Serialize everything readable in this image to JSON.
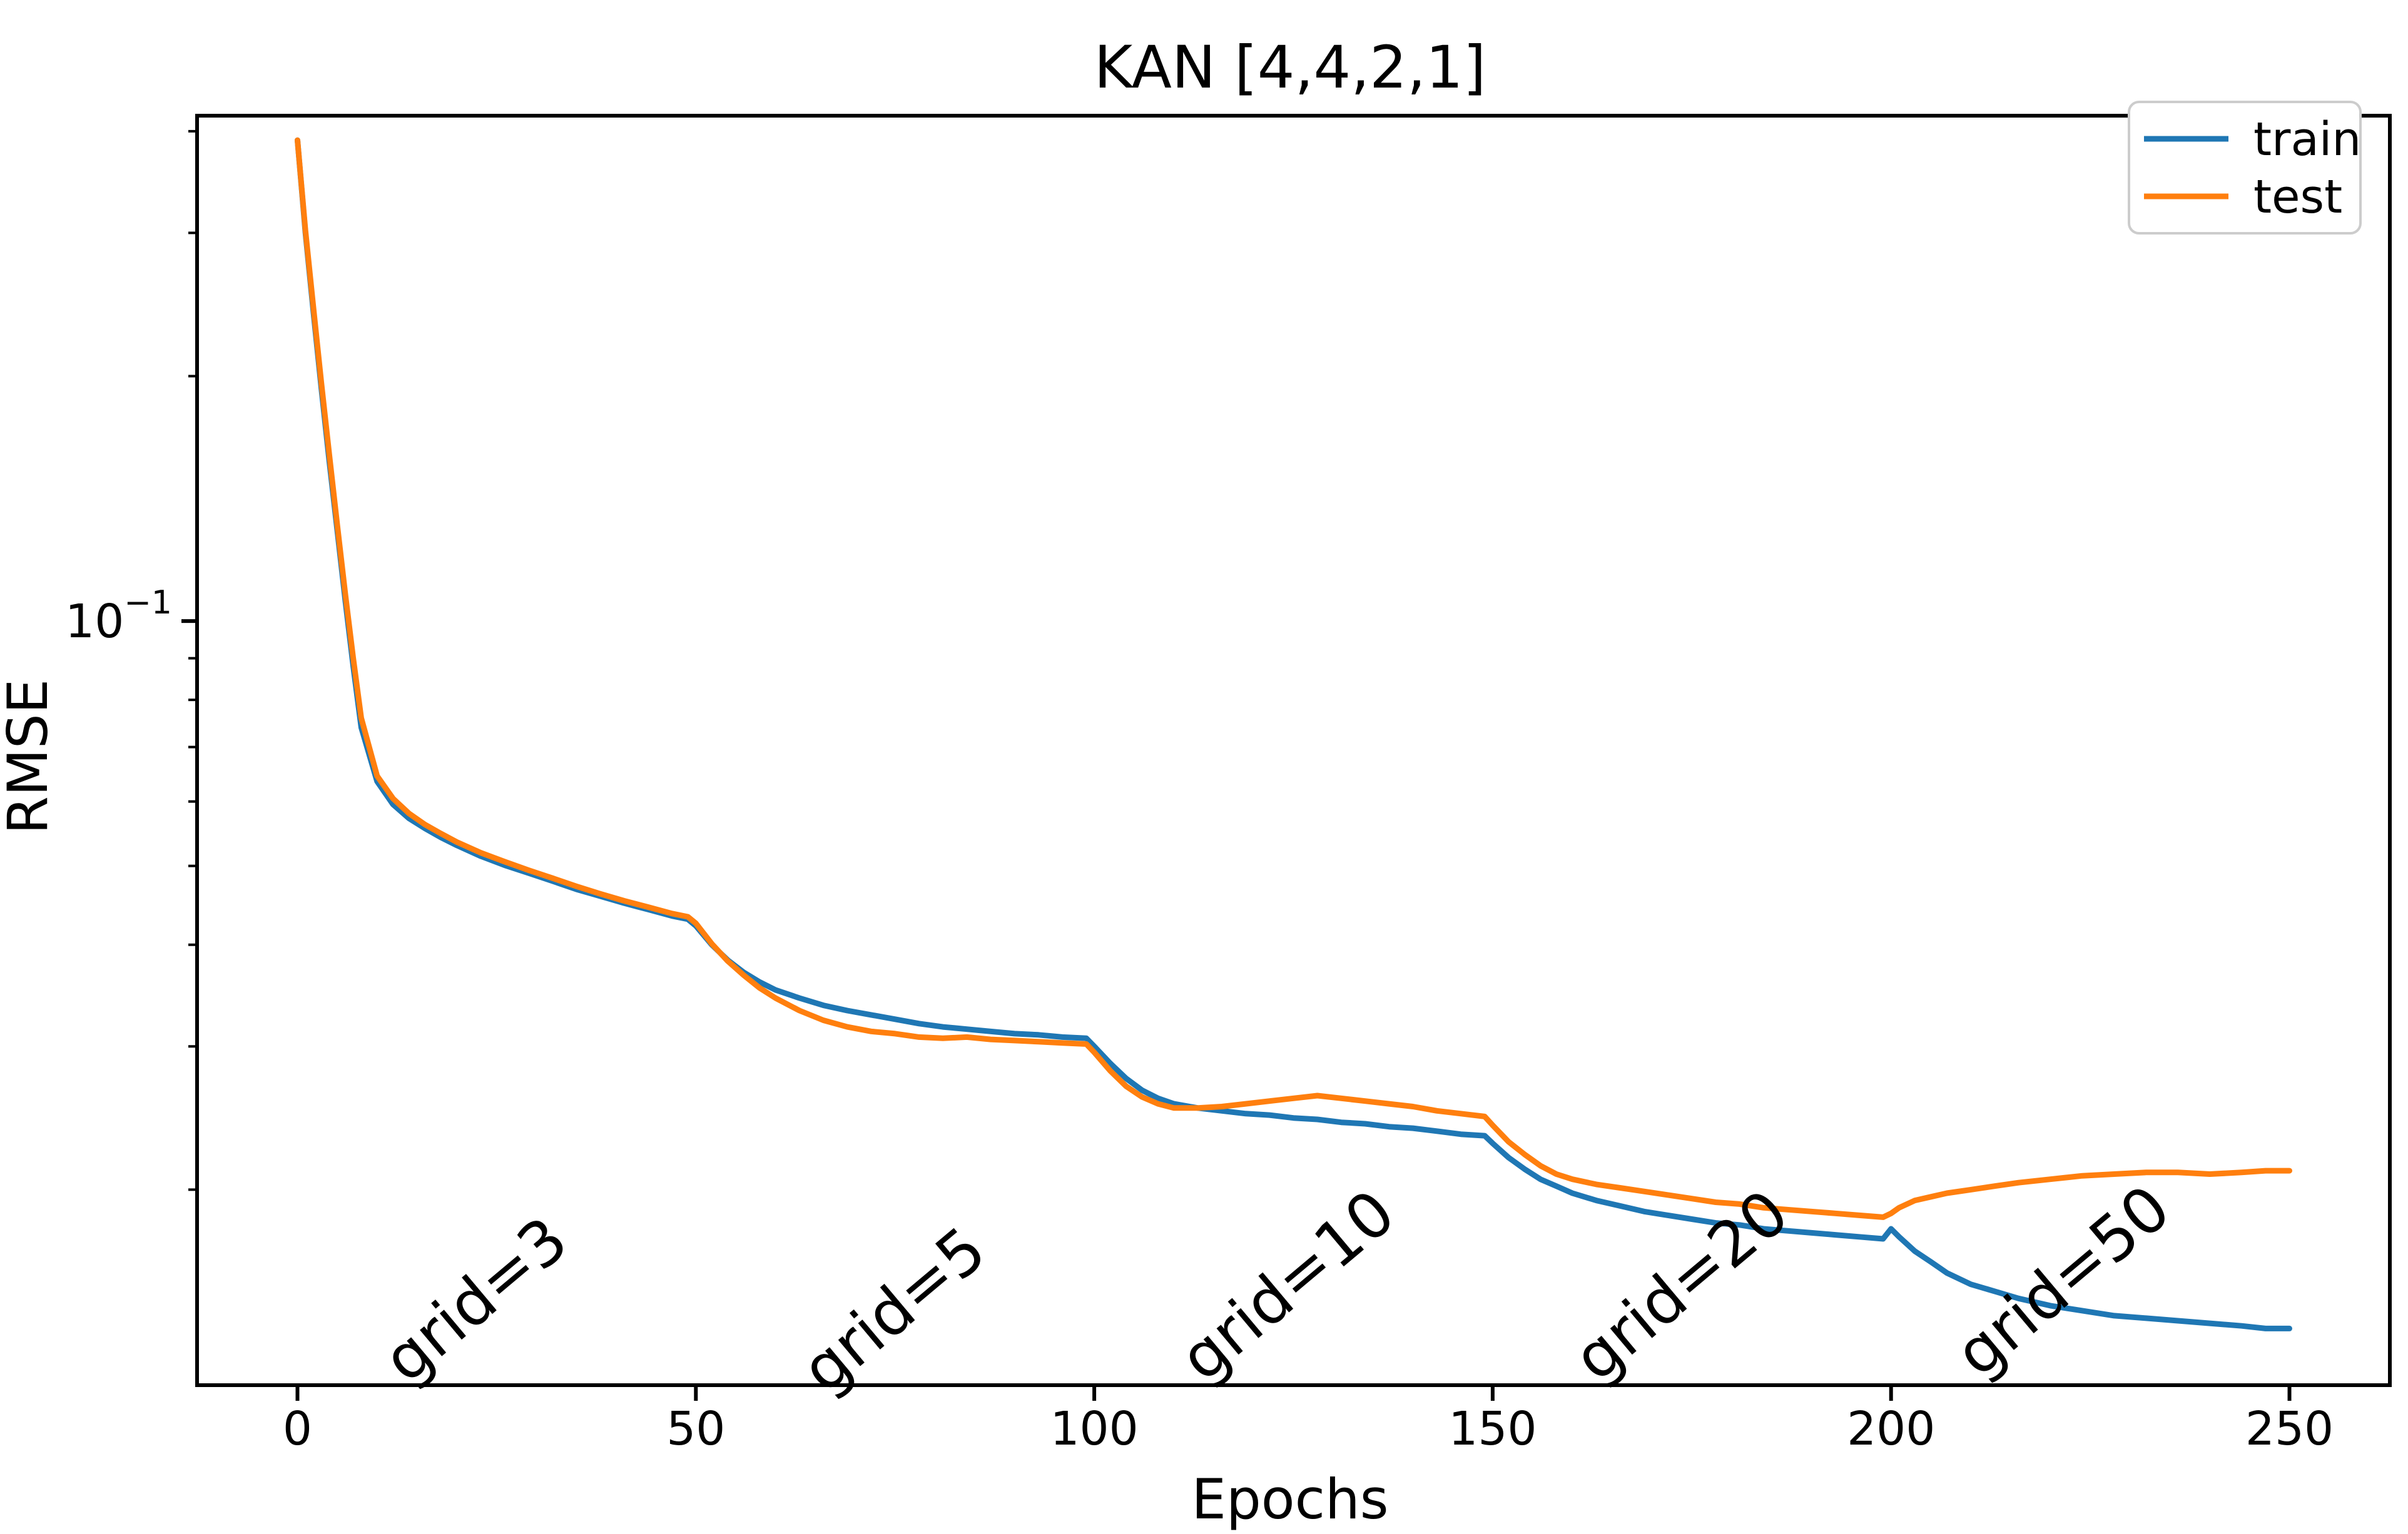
{
  "title": "KAN [4,4,2,1]",
  "axes": {
    "xlabel": "Epochs",
    "ylabel": "RMSE",
    "y_major_tick_label": {
      "base": "10",
      "exp": "−1"
    }
  },
  "legend": {
    "position": "upper right",
    "items": [
      {
        "label": "train",
        "color": "#1f77b4"
      },
      {
        "label": "test",
        "color": "#ff7f0e"
      }
    ]
  },
  "colors": {
    "train": "#1f77b4",
    "test": "#ff7f0e",
    "spine": "#000000",
    "legend_border": "#cccccc",
    "background": "#ffffff"
  },
  "chart_data": {
    "type": "line",
    "title": "KAN [4,4,2,1]",
    "xlabel": "Epochs",
    "ylabel": "RMSE",
    "x_scale": "linear",
    "y_scale": "log",
    "grid": false,
    "legend_position": "upper right",
    "xlim": [
      -12.6,
      262.6
    ],
    "ylim": [
      0.0115,
      0.418
    ],
    "x_ticks": [
      0,
      50,
      100,
      150,
      200,
      250
    ],
    "y_major_ticks": [
      0.1
    ],
    "y_minor_ticks": [
      0.02,
      0.03,
      0.04,
      0.05,
      0.06,
      0.07,
      0.08,
      0.09,
      0.2,
      0.3,
      0.4
    ],
    "grid_refinement_epochs": [
      50,
      100,
      150,
      200
    ],
    "x": [
      0,
      1,
      2,
      3,
      4,
      5,
      6,
      7,
      8,
      10,
      12,
      14,
      16,
      18,
      20,
      23,
      26,
      29,
      32,
      35,
      38,
      41,
      44,
      47,
      49,
      50,
      52,
      54,
      56,
      58,
      60,
      63,
      66,
      69,
      72,
      75,
      78,
      81,
      84,
      87,
      90,
      93,
      96,
      99,
      100,
      102,
      104,
      106,
      108,
      110,
      113,
      116,
      119,
      122,
      125,
      128,
      131,
      134,
      137,
      140,
      143,
      146,
      149,
      150,
      152,
      154,
      156,
      158,
      160,
      163,
      166,
      169,
      172,
      175,
      178,
      181,
      184,
      187,
      190,
      193,
      196,
      199,
      200,
      201,
      203,
      205,
      207,
      210,
      213,
      216,
      220,
      224,
      228,
      232,
      236,
      240,
      244,
      247,
      250
    ],
    "series": [
      {
        "name": "train",
        "color": "#1f77b4",
        "values": [
          0.39,
          0.3,
          0.24,
          0.193,
          0.157,
          0.129,
          0.106,
          0.088,
          0.074,
          0.0635,
          0.0595,
          0.0572,
          0.0556,
          0.0542,
          0.053,
          0.0514,
          0.0501,
          0.049,
          0.0479,
          0.0468,
          0.0459,
          0.045,
          0.0442,
          0.0434,
          0.043,
          0.0422,
          0.04,
          0.0383,
          0.037,
          0.036,
          0.0352,
          0.0344,
          0.0337,
          0.0332,
          0.0328,
          0.0324,
          0.032,
          0.0317,
          0.0315,
          0.0313,
          0.0311,
          0.031,
          0.0308,
          0.0307,
          0.03,
          0.0286,
          0.0274,
          0.0265,
          0.0259,
          0.0255,
          0.0252,
          0.025,
          0.0248,
          0.0247,
          0.0245,
          0.0244,
          0.0242,
          0.0241,
          0.0239,
          0.0238,
          0.0236,
          0.0234,
          0.0233,
          0.0228,
          0.0219,
          0.0212,
          0.0206,
          0.0202,
          0.0198,
          0.0194,
          0.0191,
          0.0188,
          0.0186,
          0.0184,
          0.0182,
          0.0181,
          0.0179,
          0.0178,
          0.0177,
          0.0176,
          0.0175,
          0.0174,
          0.0179,
          0.0175,
          0.0168,
          0.0163,
          0.0158,
          0.0153,
          0.015,
          0.0147,
          0.0144,
          0.0142,
          0.014,
          0.0139,
          0.0138,
          0.0137,
          0.0136,
          0.0135,
          0.0135
        ]
      },
      {
        "name": "test",
        "color": "#ff7f0e",
        "values": [
          0.39,
          0.302,
          0.243,
          0.196,
          0.16,
          0.131,
          0.108,
          0.09,
          0.076,
          0.0645,
          0.0605,
          0.058,
          0.0562,
          0.0548,
          0.0535,
          0.0519,
          0.0506,
          0.0494,
          0.0483,
          0.0472,
          0.0462,
          0.0453,
          0.0445,
          0.0437,
          0.0433,
          0.0425,
          0.0401,
          0.0382,
          0.0367,
          0.0354,
          0.0344,
          0.0332,
          0.0323,
          0.0317,
          0.0313,
          0.0311,
          0.0308,
          0.0307,
          0.0308,
          0.0306,
          0.0305,
          0.0304,
          0.0303,
          0.0302,
          0.0295,
          0.028,
          0.0268,
          0.026,
          0.0255,
          0.0252,
          0.0252,
          0.0253,
          0.0255,
          0.0257,
          0.0259,
          0.0261,
          0.0259,
          0.0257,
          0.0255,
          0.0253,
          0.025,
          0.0248,
          0.0246,
          0.024,
          0.0229,
          0.0221,
          0.0214,
          0.0209,
          0.0206,
          0.0203,
          0.0201,
          0.0199,
          0.0197,
          0.0195,
          0.0193,
          0.0192,
          0.019,
          0.0189,
          0.0188,
          0.0187,
          0.0186,
          0.0185,
          0.0187,
          0.019,
          0.0194,
          0.0196,
          0.0198,
          0.02,
          0.0202,
          0.0204,
          0.0206,
          0.0208,
          0.0209,
          0.021,
          0.021,
          0.0209,
          0.021,
          0.0211,
          0.0211
        ]
      }
    ],
    "annotations": [
      {
        "text": "grid=3",
        "x": 22.7,
        "y": 0.0145,
        "rotation_deg": -40
      },
      {
        "text": "grid=5",
        "x": 75.2,
        "y": 0.0141,
        "rotation_deg": -40
      },
      {
        "text": "grid=10",
        "x": 124.6,
        "y": 0.0151,
        "rotation_deg": -40
      },
      {
        "text": "grid=20",
        "x": 174.0,
        "y": 0.0151,
        "rotation_deg": -40
      },
      {
        "text": "grid=50",
        "x": 221.9,
        "y": 0.0153,
        "rotation_deg": -40
      }
    ]
  }
}
